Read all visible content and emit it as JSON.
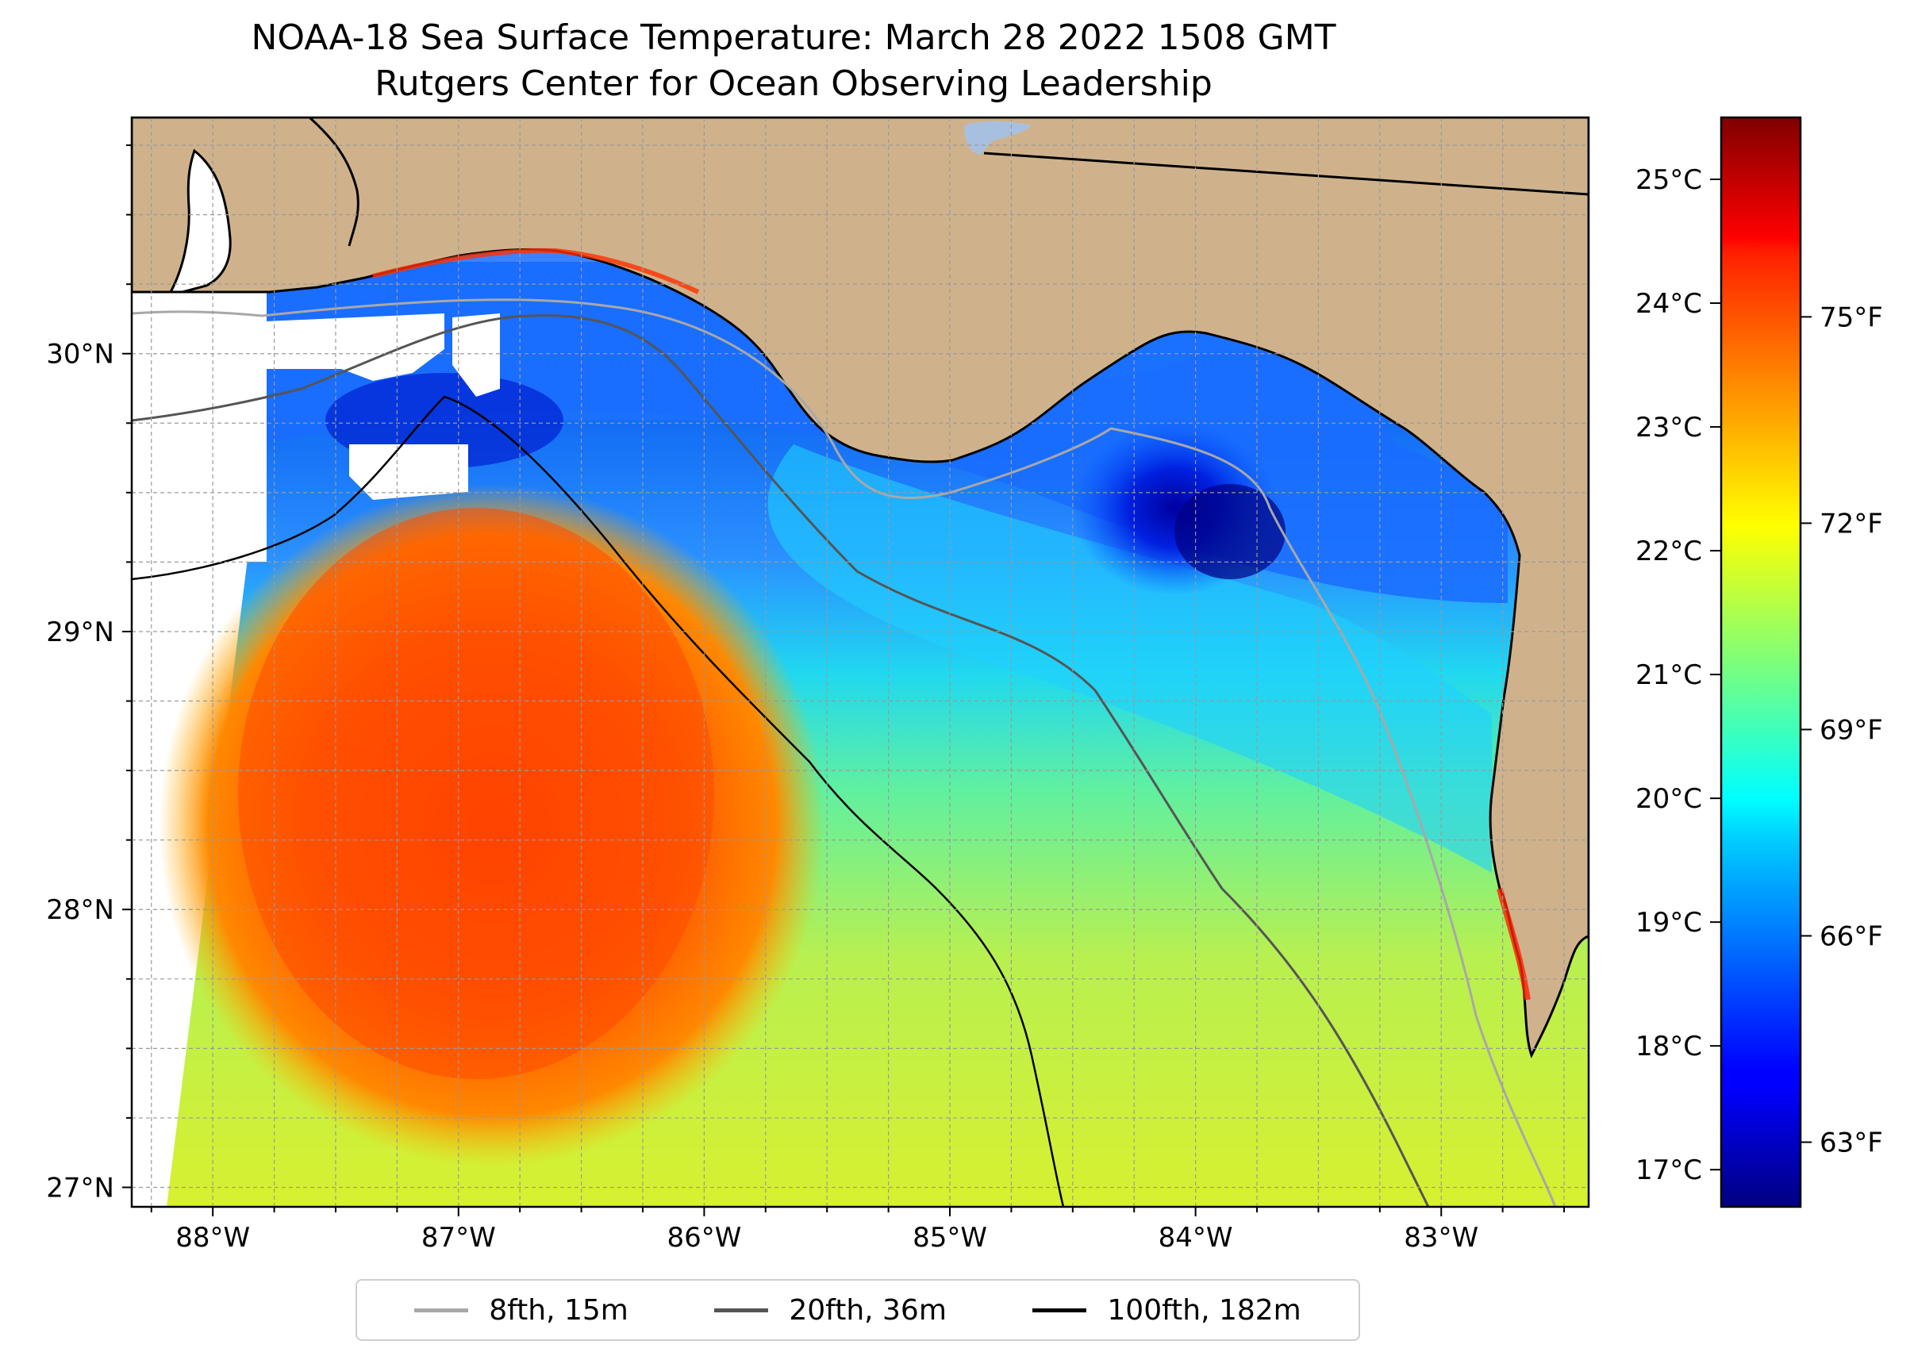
{
  "title": {
    "line1": "NOAA-18 Sea Surface Temperature: March 28 2022 1508 GMT",
    "line2": "Rutgers Center for Ocean Observing Leadership"
  },
  "map": {
    "extent": {
      "lon_min": -88.33,
      "lon_max": -82.4,
      "lat_min": 26.93,
      "lat_max": 30.85
    },
    "lon_ticks": [
      {
        "value": -88,
        "label": "88°W"
      },
      {
        "value": -87,
        "label": "87°W"
      },
      {
        "value": -86,
        "label": "86°W"
      },
      {
        "value": -85,
        "label": "85°W"
      },
      {
        "value": -84,
        "label": "84°W"
      },
      {
        "value": -83,
        "label": "83°W"
      }
    ],
    "lat_ticks": [
      {
        "value": 27,
        "label": "27°N"
      },
      {
        "value": 28,
        "label": "28°N"
      },
      {
        "value": 29,
        "label": "29°N"
      },
      {
        "value": 30,
        "label": "30°N"
      }
    ],
    "gridlines": true,
    "colors": {
      "land": "#cfb28c",
      "coastline": "#000000",
      "gridline": "#9a9a9a",
      "lake": "#a8c0e0",
      "isobath_8fth": "#a8a8a8",
      "isobath_20fth": "#555555",
      "isobath_100fth": "#000000"
    },
    "sst_features": [
      {
        "name": "warm-eddy",
        "lon": -86.8,
        "lat": 28.3,
        "temp_c": 24.3
      },
      {
        "name": "cold-pool-big-bend",
        "lon": -84.0,
        "lat": 29.5,
        "temp_c": 17.5
      }
    ]
  },
  "colorbar": {
    "colormap": "jet",
    "celsius_ticks": [
      {
        "value": 17,
        "label": "17°C"
      },
      {
        "value": 18,
        "label": "18°C"
      },
      {
        "value": 19,
        "label": "19°C"
      },
      {
        "value": 20,
        "label": "20°C"
      },
      {
        "value": 21,
        "label": "21°C"
      },
      {
        "value": 22,
        "label": "22°C"
      },
      {
        "value": 23,
        "label": "23°C"
      },
      {
        "value": 24,
        "label": "24°C"
      },
      {
        "value": 25,
        "label": "25°C"
      }
    ],
    "fahrenheit_ticks": [
      {
        "value": 63,
        "label": "63°F"
      },
      {
        "value": 66,
        "label": "66°F"
      },
      {
        "value": 69,
        "label": "69°F"
      },
      {
        "value": 72,
        "label": "72°F"
      },
      {
        "value": 75,
        "label": "75°F"
      }
    ],
    "range_c": [
      16.7,
      25.5
    ]
  },
  "legend": {
    "items": [
      {
        "label": "8fth, 15m",
        "color": "#a8a8a8"
      },
      {
        "label": "20fth, 36m",
        "color": "#555555"
      },
      {
        "label": "100fth, 182m",
        "color": "#000000"
      }
    ]
  }
}
